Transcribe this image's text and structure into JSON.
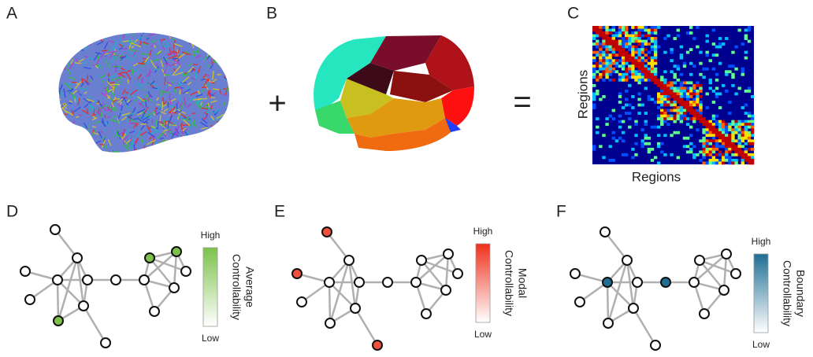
{
  "panels": {
    "a": "A",
    "b": "B",
    "c": "C"
  },
  "operators": {
    "plus": "+",
    "equals": "="
  },
  "matrix": {
    "x_label": "Regions",
    "y_label": "Regions"
  },
  "networks": [
    {
      "label": "D",
      "scale_high": "High",
      "scale_low": "Low",
      "scale_title": [
        "Average",
        "Controllability"
      ]
    },
    {
      "label": "E",
      "scale_high": "High",
      "scale_low": "Low",
      "scale_title": [
        "Modal",
        "Controllability"
      ]
    },
    {
      "label": "F",
      "scale_high": "High",
      "scale_low": "Low",
      "scale_title": [
        "Boundary",
        "Controllability"
      ]
    }
  ]
}
